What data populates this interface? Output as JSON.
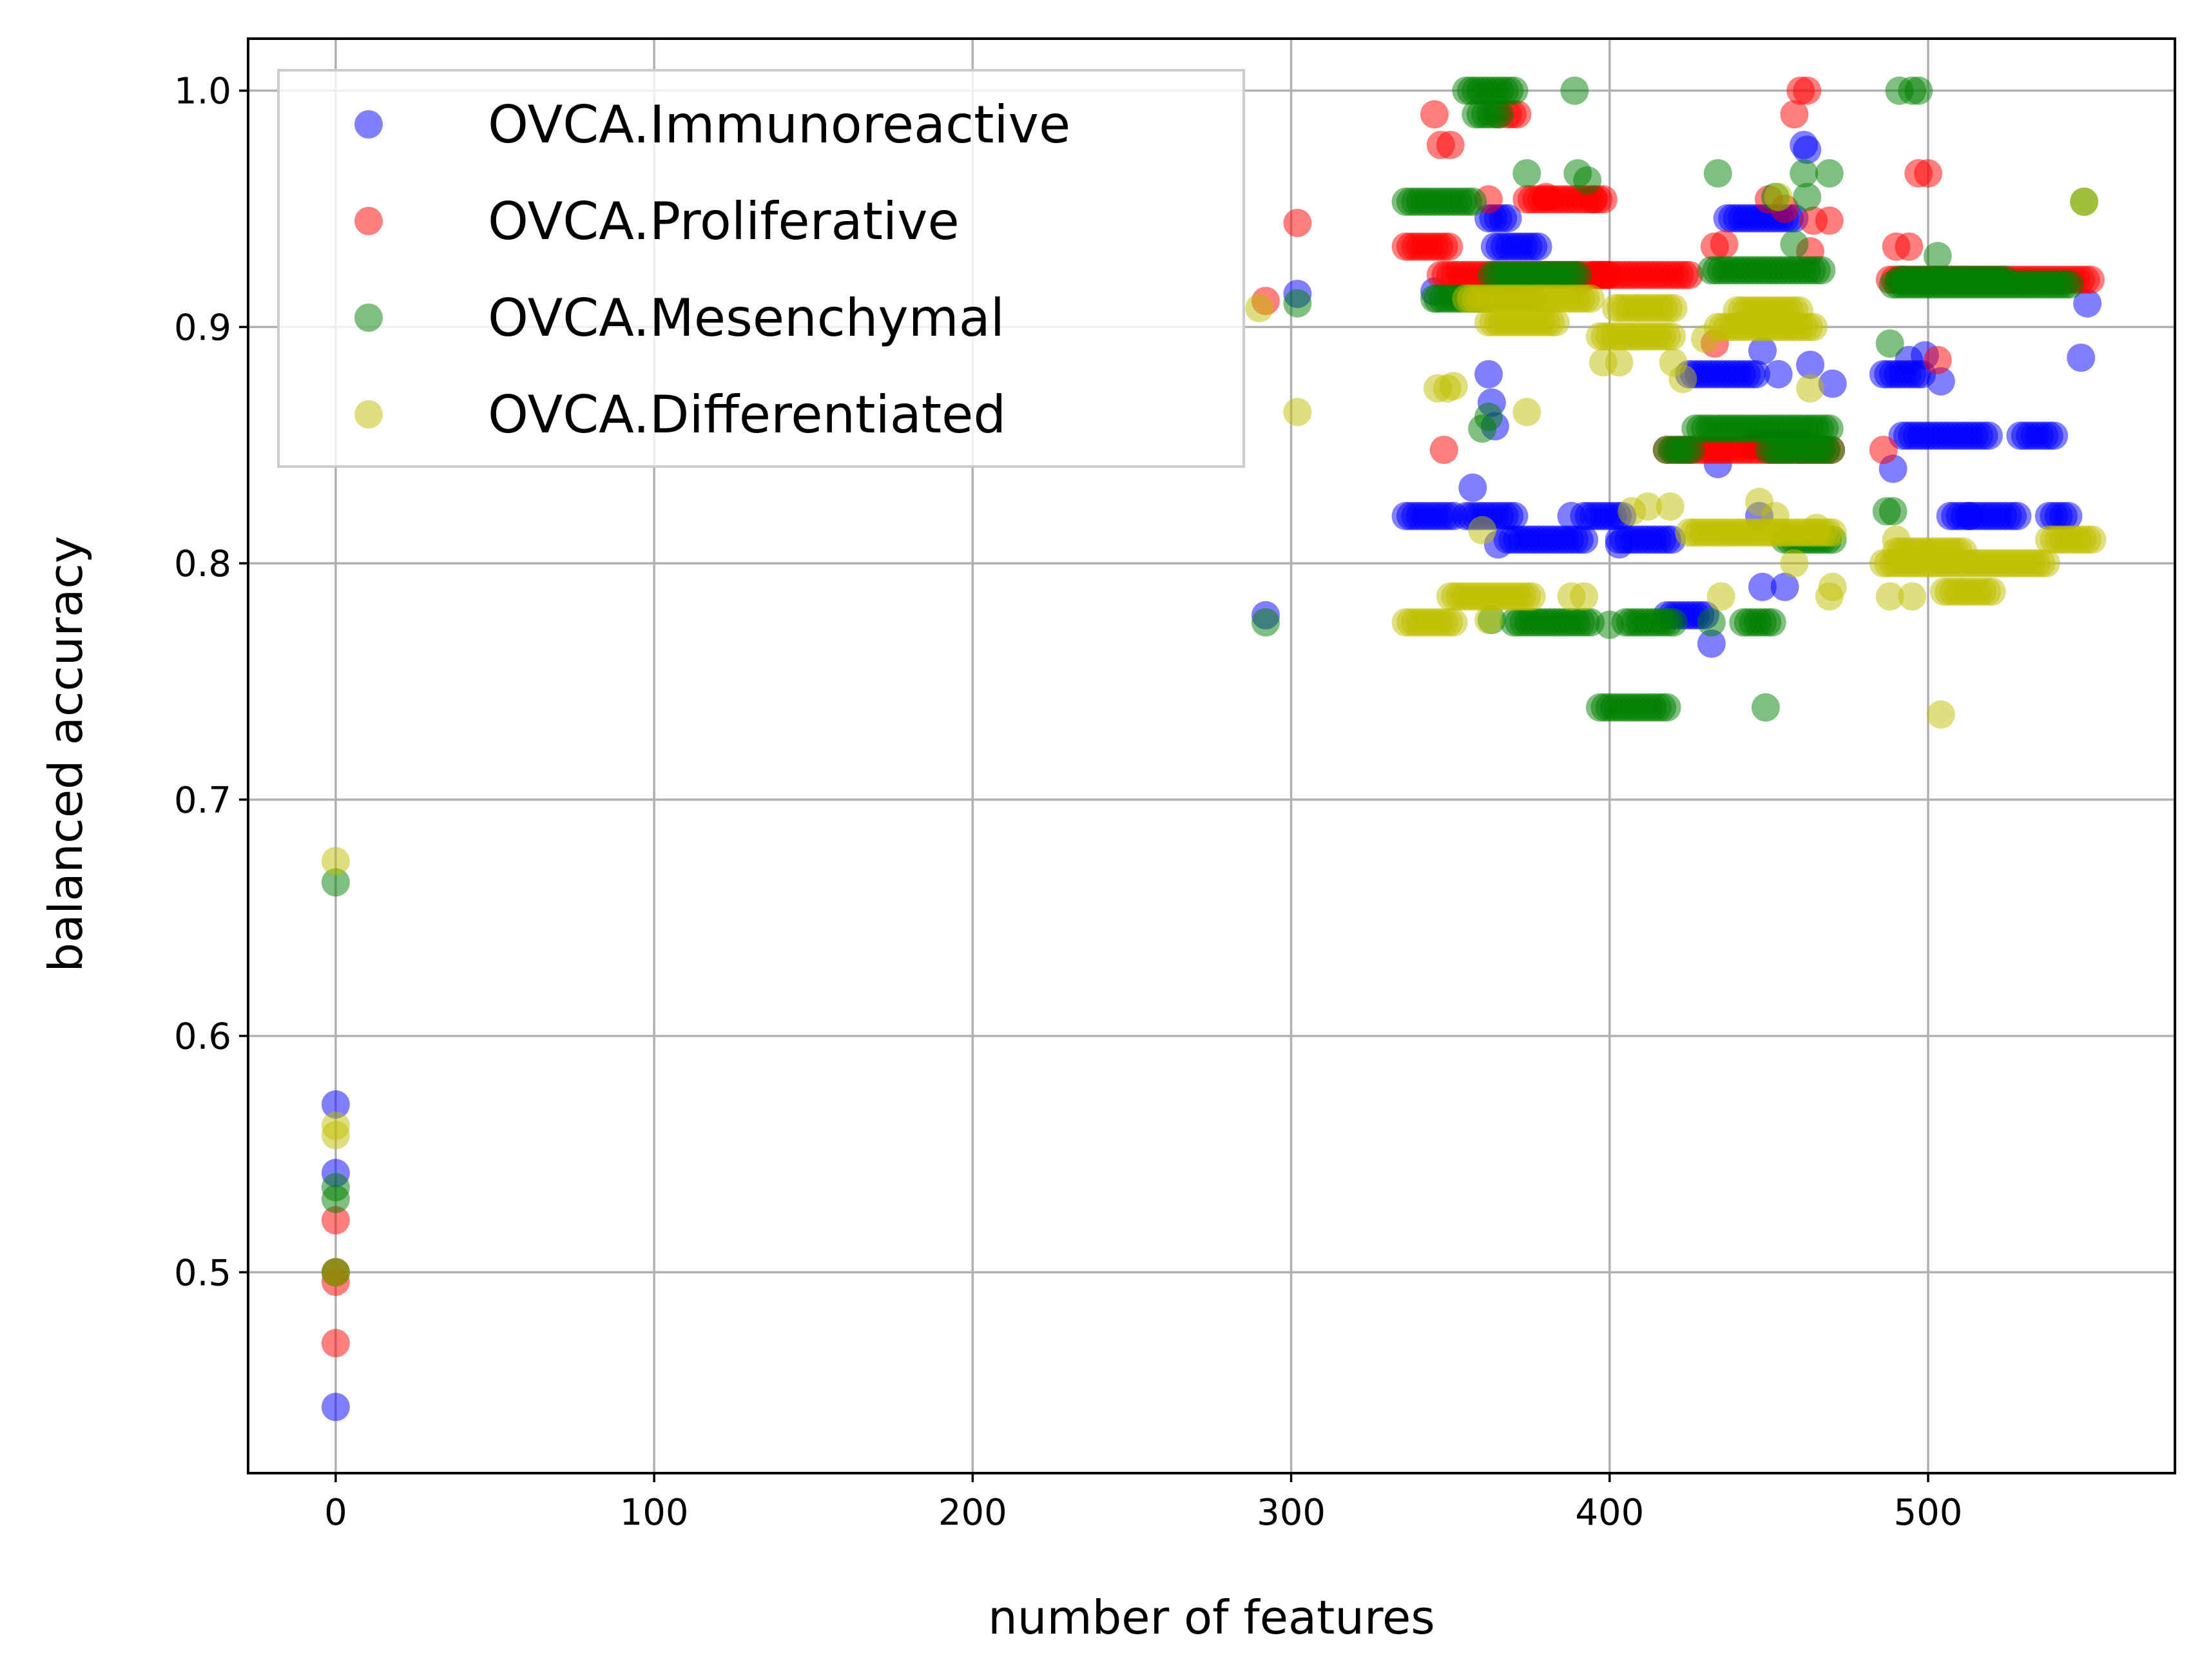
{
  "chart_data": {
    "type": "scatter",
    "title": "",
    "xlabel": "number of features",
    "ylabel": "balanced accuracy",
    "xlim": [
      -27.5,
      577.5
    ],
    "ylim": [
      0.415,
      1.022
    ],
    "xticks": [
      0,
      100,
      200,
      300,
      400,
      500
    ],
    "yticks": [
      0.5,
      0.6,
      0.7,
      0.8,
      0.9,
      1.0
    ],
    "x_tick_labels": [
      "0",
      "100",
      "200",
      "300",
      "400",
      "500"
    ],
    "y_tick_labels": [
      "0.5",
      "0.6",
      "0.7",
      "0.8",
      "0.9",
      "1.0"
    ],
    "grid": true,
    "legend_position": "upper-left",
    "series": [
      {
        "name": "OVCA.Immunoreactive",
        "color": "#0000ff",
        "opacity": 0.5,
        "segments": [
          [
            336,
            352,
            0.82
          ],
          [
            355,
            370,
            0.82
          ],
          [
            368,
            392,
            0.81
          ],
          [
            392,
            404,
            0.82
          ],
          [
            403,
            420,
            0.81
          ],
          [
            418,
            430,
            0.778
          ],
          [
            425,
            447,
            0.88
          ],
          [
            437,
            458,
            0.946
          ],
          [
            445,
            462,
            0.85
          ],
          [
            486,
            498,
            0.88
          ],
          [
            492,
            520,
            0.854
          ],
          [
            507,
            528,
            0.82
          ],
          [
            529,
            540,
            0.854
          ],
          [
            538,
            545,
            0.82
          ],
          [
            364,
            378,
            0.934
          ],
          [
            362,
            368,
            0.946
          ]
        ],
        "points": [
          [
            0,
            0.443
          ],
          [
            0,
            0.5
          ],
          [
            0,
            0.542
          ],
          [
            0,
            0.571
          ],
          [
            292,
            0.778
          ],
          [
            302,
            0.914
          ],
          [
            345,
            0.915
          ],
          [
            357,
            0.832
          ],
          [
            362,
            0.88
          ],
          [
            363,
            0.868
          ],
          [
            364,
            0.858
          ],
          [
            365,
            0.808
          ],
          [
            388,
            0.82
          ],
          [
            403,
            0.808
          ],
          [
            432,
            0.766
          ],
          [
            434,
            0.842
          ],
          [
            448,
            0.79
          ],
          [
            448,
            0.89
          ],
          [
            447,
            0.82
          ],
          [
            453,
            0.88
          ],
          [
            455,
            0.79
          ],
          [
            461,
            0.977
          ],
          [
            462,
            0.975
          ],
          [
            463,
            0.884
          ],
          [
            470,
            0.876
          ],
          [
            489,
            0.84
          ],
          [
            494,
            0.886
          ],
          [
            499,
            0.888
          ],
          [
            504,
            0.877
          ],
          [
            513,
            0.82
          ],
          [
            548,
            0.887
          ],
          [
            550,
            0.91
          ]
        ]
      },
      {
        "name": "OVCA.Proliferative",
        "color": "#ff0000",
        "opacity": 0.5,
        "segments": [
          [
            336,
            350,
            0.934
          ],
          [
            347,
            400,
            0.922
          ],
          [
            395,
            425,
            0.922
          ],
          [
            420,
            470,
            0.848
          ],
          [
            488,
            552,
            0.92
          ],
          [
            374,
            398,
            0.954
          ],
          [
            368,
            372,
            0.99
          ]
        ],
        "points": [
          [
            0,
            0.47
          ],
          [
            0,
            0.496
          ],
          [
            0,
            0.5
          ],
          [
            0,
            0.522
          ],
          [
            292,
            0.911
          ],
          [
            302,
            0.944
          ],
          [
            345,
            0.99
          ],
          [
            347,
            0.977
          ],
          [
            350,
            0.977
          ],
          [
            348,
            0.848
          ],
          [
            362,
            0.954
          ],
          [
            365,
            0.99
          ],
          [
            380,
            0.955
          ],
          [
            391,
            0.92
          ],
          [
            395,
            0.954
          ],
          [
            418,
            0.848
          ],
          [
            433,
            0.934
          ],
          [
            436,
            0.935
          ],
          [
            433,
            0.893
          ],
          [
            450,
            0.954
          ],
          [
            455,
            0.95
          ],
          [
            458,
            0.99
          ],
          [
            460,
            1.0
          ],
          [
            462,
            1.0
          ],
          [
            463,
            0.932
          ],
          [
            464,
            0.945
          ],
          [
            469,
            0.945
          ],
          [
            486,
            0.848
          ],
          [
            490,
            0.934
          ],
          [
            492,
            0.92
          ],
          [
            494,
            0.934
          ],
          [
            497,
            0.965
          ],
          [
            500,
            0.965
          ],
          [
            503,
            0.886
          ]
        ]
      },
      {
        "name": "OVCA.Mesenchymal",
        "color": "#008000",
        "opacity": 0.5,
        "segments": [
          [
            336,
            357,
            0.953
          ],
          [
            346,
            377,
            0.912
          ],
          [
            363,
            390,
            0.922
          ],
          [
            370,
            395,
            0.775
          ],
          [
            397,
            418,
            0.739
          ],
          [
            405,
            420,
            0.775
          ],
          [
            418,
            426,
            0.848
          ],
          [
            427,
            470,
            0.857
          ],
          [
            432,
            467,
            0.924
          ],
          [
            442,
            452,
            0.775
          ],
          [
            450,
            470,
            0.848
          ],
          [
            455,
            470,
            0.81
          ],
          [
            489,
            545,
            0.918
          ],
          [
            491,
            525,
            0.92
          ],
          [
            355,
            371,
            1.0
          ],
          [
            358,
            366,
            0.99
          ]
        ],
        "points": [
          [
            0,
            0.531
          ],
          [
            0,
            0.536
          ],
          [
            0,
            0.5
          ],
          [
            0,
            0.665
          ],
          [
            292,
            0.775
          ],
          [
            302,
            0.91
          ],
          [
            345,
            0.912
          ],
          [
            360,
            0.857
          ],
          [
            362,
            0.862
          ],
          [
            363,
            0.776
          ],
          [
            374,
            0.965
          ],
          [
            389,
            1.0
          ],
          [
            390,
            0.965
          ],
          [
            393,
            0.962
          ],
          [
            400,
            0.774
          ],
          [
            432,
            0.775
          ],
          [
            434,
            0.965
          ],
          [
            449,
            0.739
          ],
          [
            452,
            0.955
          ],
          [
            458,
            0.935
          ],
          [
            461,
            0.965
          ],
          [
            462,
            0.955
          ],
          [
            469,
            0.965
          ],
          [
            487,
            0.822
          ],
          [
            488,
            0.893
          ],
          [
            489,
            0.822
          ],
          [
            491,
            1.0
          ],
          [
            495,
            1.0
          ],
          [
            497,
            1.0
          ],
          [
            503,
            0.93
          ],
          [
            549,
            0.953
          ]
        ]
      },
      {
        "name": "OVCA.Differentiated",
        "color": "#bfbf00",
        "opacity": 0.5,
        "segments": [
          [
            336,
            352,
            0.775
          ],
          [
            350,
            376,
            0.786
          ],
          [
            355,
            395,
            0.912
          ],
          [
            362,
            384,
            0.902
          ],
          [
            397,
            420,
            0.896
          ],
          [
            402,
            420,
            0.908
          ],
          [
            425,
            470,
            0.813
          ],
          [
            434,
            464,
            0.9
          ],
          [
            440,
            460,
            0.907
          ],
          [
            486,
            537,
            0.8
          ],
          [
            505,
            520,
            0.788
          ],
          [
            490,
            512,
            0.805
          ],
          [
            538,
            552,
            0.81
          ]
        ],
        "points": [
          [
            0,
            0.5
          ],
          [
            0,
            0.558
          ],
          [
            0,
            0.562
          ],
          [
            0,
            0.674
          ],
          [
            290,
            0.908
          ],
          [
            302,
            0.864
          ],
          [
            346,
            0.874
          ],
          [
            349,
            0.874
          ],
          [
            351,
            0.875
          ],
          [
            360,
            0.814
          ],
          [
            362,
            0.776
          ],
          [
            374,
            0.864
          ],
          [
            388,
            0.786
          ],
          [
            392,
            0.786
          ],
          [
            398,
            0.885
          ],
          [
            403,
            0.885
          ],
          [
            407,
            0.822
          ],
          [
            412,
            0.824
          ],
          [
            419,
            0.824
          ],
          [
            420,
            0.885
          ],
          [
            423,
            0.878
          ],
          [
            430,
            0.895
          ],
          [
            435,
            0.786
          ],
          [
            447,
            0.826
          ],
          [
            452,
            0.82
          ],
          [
            453,
            0.955
          ],
          [
            458,
            0.8
          ],
          [
            463,
            0.874
          ],
          [
            465,
            0.815
          ],
          [
            469,
            0.786
          ],
          [
            470,
            0.79
          ],
          [
            488,
            0.786
          ],
          [
            490,
            0.81
          ],
          [
            495,
            0.786
          ],
          [
            504,
            0.736
          ],
          [
            549,
            0.953
          ]
        ]
      }
    ]
  }
}
